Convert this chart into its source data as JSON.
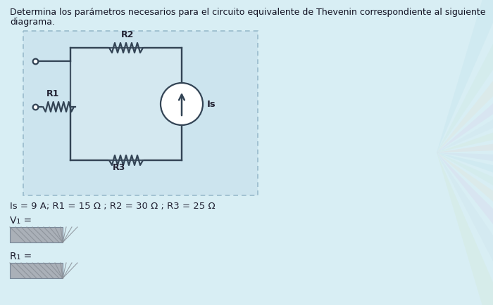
{
  "title_line1": "Determina los parámetros necesarios para el circuito equivalente de Thevenin correspondiente al siguiente",
  "title_line2": "diagrama.",
  "params_text": "Is = 9 A; R1 = 15 Ω ; R2 = 30 Ω ; R3 = 25 Ω",
  "vt_label": "V₁ =",
  "rt_label": "R₁ =",
  "bg_color": "#d8eef4",
  "outer_box_fill": "#cce4ee",
  "outer_box_edge": "#99bbcc",
  "inner_box_fill": "#d4e8f0",
  "inner_box_edge": "#445566",
  "wire_color": "#334455",
  "label_color": "#222233",
  "answer_box_fill": "#aab0b8",
  "answer_hatch_color": "#8a9098",
  "white": "#ffffff"
}
